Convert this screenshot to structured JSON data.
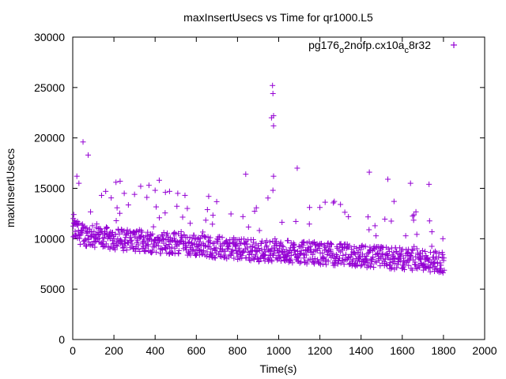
{
  "chart_data": {
    "type": "scatter",
    "title": "maxInsertUsecs vs Time for qr1000.L5",
    "xlabel": "Time(s)",
    "ylabel": "maxInsertUsecs",
    "xlim": [
      0,
      2000
    ],
    "ylim": [
      0,
      30000
    ],
    "x_ticks": [
      0,
      200,
      400,
      600,
      800,
      1000,
      1200,
      1400,
      1600,
      1800,
      2000
    ],
    "y_ticks": [
      0,
      5000,
      10000,
      15000,
      20000,
      25000,
      30000
    ],
    "x_tick_labels": [
      "0",
      "200",
      "400",
      "600",
      "800",
      "1000",
      "1200",
      "1400",
      "1600",
      "1800",
      "2000"
    ],
    "y_tick_labels": [
      "0",
      "5000",
      "10000",
      "15000",
      "20000",
      "25000",
      "30000"
    ],
    "grid": false,
    "legend": {
      "position": "top-right",
      "label_main": "pg176",
      "label_sub1": "o",
      "label_mid": "2nofp.cx10a",
      "label_sub2": "c",
      "label_end": "8r32"
    },
    "series": [
      {
        "name": "pg176_o2nofp.cx10a_c8r32",
        "color": "#9400d3",
        "marker": "+",
        "density_note": "dense band of ~1800 points; x sampled every 5s; y trend from ~10500 at t=0 to ~7500 at t=1800",
        "x": [
          0,
          25,
          50,
          75,
          100,
          125,
          150,
          175,
          200,
          225,
          250,
          275,
          300,
          325,
          350,
          375,
          400,
          425,
          450,
          475,
          500,
          525,
          550,
          575,
          600,
          625,
          650,
          675,
          700,
          725,
          750,
          775,
          800,
          825,
          850,
          875,
          900,
          925,
          950,
          975,
          1000,
          1025,
          1050,
          1075,
          1100,
          1125,
          1150,
          1175,
          1200,
          1225,
          1250,
          1275,
          1300,
          1325,
          1350,
          1375,
          1400,
          1425,
          1450,
          1475,
          1500,
          1525,
          1550,
          1575,
          1600,
          1625,
          1650,
          1675,
          1700,
          1725,
          1750,
          1775,
          1800
        ],
        "y": [
          10800,
          10500,
          10300,
          10200,
          10100,
          10000,
          10000,
          9900,
          9900,
          9800,
          9800,
          9800,
          9700,
          9700,
          9600,
          9600,
          9600,
          9500,
          9500,
          9400,
          9400,
          9300,
          9300,
          9300,
          9200,
          9200,
          9100,
          9100,
          9000,
          9000,
          8900,
          8900,
          8900,
          8800,
          8800,
          8800,
          8700,
          8700,
          8700,
          8700,
          8600,
          8600,
          8600,
          8600,
          8500,
          8500,
          8500,
          8500,
          8400,
          8400,
          8400,
          8300,
          8300,
          8300,
          8200,
          8200,
          8200,
          8100,
          8100,
          8100,
          8000,
          8000,
          8000,
          7900,
          7900,
          7900,
          7800,
          7800,
          7800,
          7700,
          7700,
          7600,
          7600
        ],
        "outliers": [
          [
            5,
            12400
          ],
          [
            10,
            11800
          ],
          [
            20,
            16200
          ],
          [
            30,
            15500
          ],
          [
            50,
            19600
          ],
          [
            75,
            18300
          ],
          [
            140,
            14300
          ],
          [
            160,
            14700
          ],
          [
            210,
            15600
          ],
          [
            230,
            15700
          ],
          [
            250,
            14500
          ],
          [
            300,
            14400
          ],
          [
            330,
            15200
          ],
          [
            360,
            14100
          ],
          [
            370,
            15300
          ],
          [
            400,
            14800
          ],
          [
            420,
            15800
          ],
          [
            450,
            14600
          ],
          [
            470,
            14700
          ],
          [
            510,
            14500
          ],
          [
            545,
            14300
          ],
          [
            660,
            14200
          ],
          [
            840,
            16400
          ],
          [
            965,
            22000
          ],
          [
            970,
            25200
          ],
          [
            972,
            24400
          ],
          [
            975,
            22200
          ],
          [
            975,
            21200
          ],
          [
            975,
            16200
          ],
          [
            972,
            14800
          ],
          [
            1090,
            17000
          ],
          [
            1150,
            13100
          ],
          [
            1200,
            13100
          ],
          [
            1270,
            13700
          ],
          [
            1300,
            13400
          ],
          [
            1440,
            16600
          ],
          [
            1530,
            15900
          ],
          [
            1560,
            13700
          ],
          [
            1640,
            15500
          ],
          [
            1730,
            15400
          ]
        ]
      }
    ]
  }
}
